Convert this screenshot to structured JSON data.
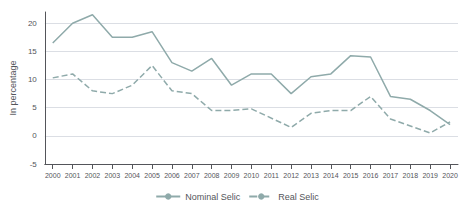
{
  "chart_data": {
    "type": "line",
    "ylabel": "In percentage",
    "series": [
      {
        "name": "Nominal Selic",
        "color": "#8faaaa",
        "line_style": "solid",
        "x": [
          2000,
          2001,
          2002,
          2003,
          2004,
          2005,
          2006,
          2007,
          2008,
          2009,
          2010,
          2011,
          2012,
          2013,
          2014,
          2015,
          2016,
          2017,
          2018,
          2019,
          2020
        ],
        "values": [
          16.5,
          20.0,
          21.5,
          17.5,
          17.5,
          18.5,
          13.0,
          11.5,
          13.75,
          9.0,
          11.0,
          11.0,
          7.5,
          10.5,
          11.0,
          14.25,
          14.0,
          7.0,
          6.5,
          4.5,
          2.0
        ]
      },
      {
        "name": "Real Selic",
        "color": "#8faaaa",
        "line_style": "dashed",
        "x": [
          2000,
          2001,
          2002,
          2003,
          2004,
          2005,
          2006,
          2007,
          2008,
          2009,
          2010,
          2012,
          2013,
          2014,
          2015,
          2016,
          2017,
          2019,
          2020
        ],
        "values": [
          10.3,
          11.0,
          8.0,
          7.5,
          9.0,
          12.5,
          8.0,
          7.5,
          4.5,
          4.5,
          4.8,
          1.5,
          4.0,
          4.5,
          4.5,
          7.0,
          3.0,
          0.5,
          2.5
        ]
      }
    ],
    "xlim": [
      1999.6,
      2020.4
    ],
    "xticks": [
      2000,
      2001,
      2002,
      2003,
      2004,
      2005,
      2006,
      2007,
      2008,
      2009,
      2010,
      2011,
      2012,
      2013,
      2014,
      2015,
      2016,
      2017,
      2018,
      2019,
      2020
    ],
    "ylim": [
      -5,
      22
    ],
    "yticks": [
      -5,
      0,
      5,
      10,
      15,
      20
    ],
    "grid": true,
    "legend": "bottom"
  }
}
